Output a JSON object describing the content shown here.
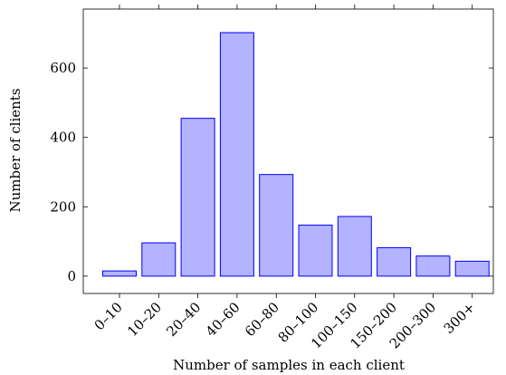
{
  "chart_data": {
    "type": "bar",
    "title": "",
    "xlabel": "Number of samples in each client",
    "ylabel": "Number of clients",
    "categories": [
      "0–10",
      "10–20",
      "20–40",
      "40–60",
      "60–80",
      "80–100",
      "100–150",
      "150–200",
      "200–300",
      "300+"
    ],
    "values": [
      15,
      96,
      455,
      702,
      293,
      147,
      172,
      82,
      58,
      43
    ],
    "ylim": [
      -50,
      770
    ],
    "yticks": [
      0,
      200,
      400,
      600
    ],
    "grid": false,
    "colors": {
      "bar_fill": "#b3b3ff",
      "bar_stroke": "#0000ff",
      "axis": "#000000"
    }
  }
}
